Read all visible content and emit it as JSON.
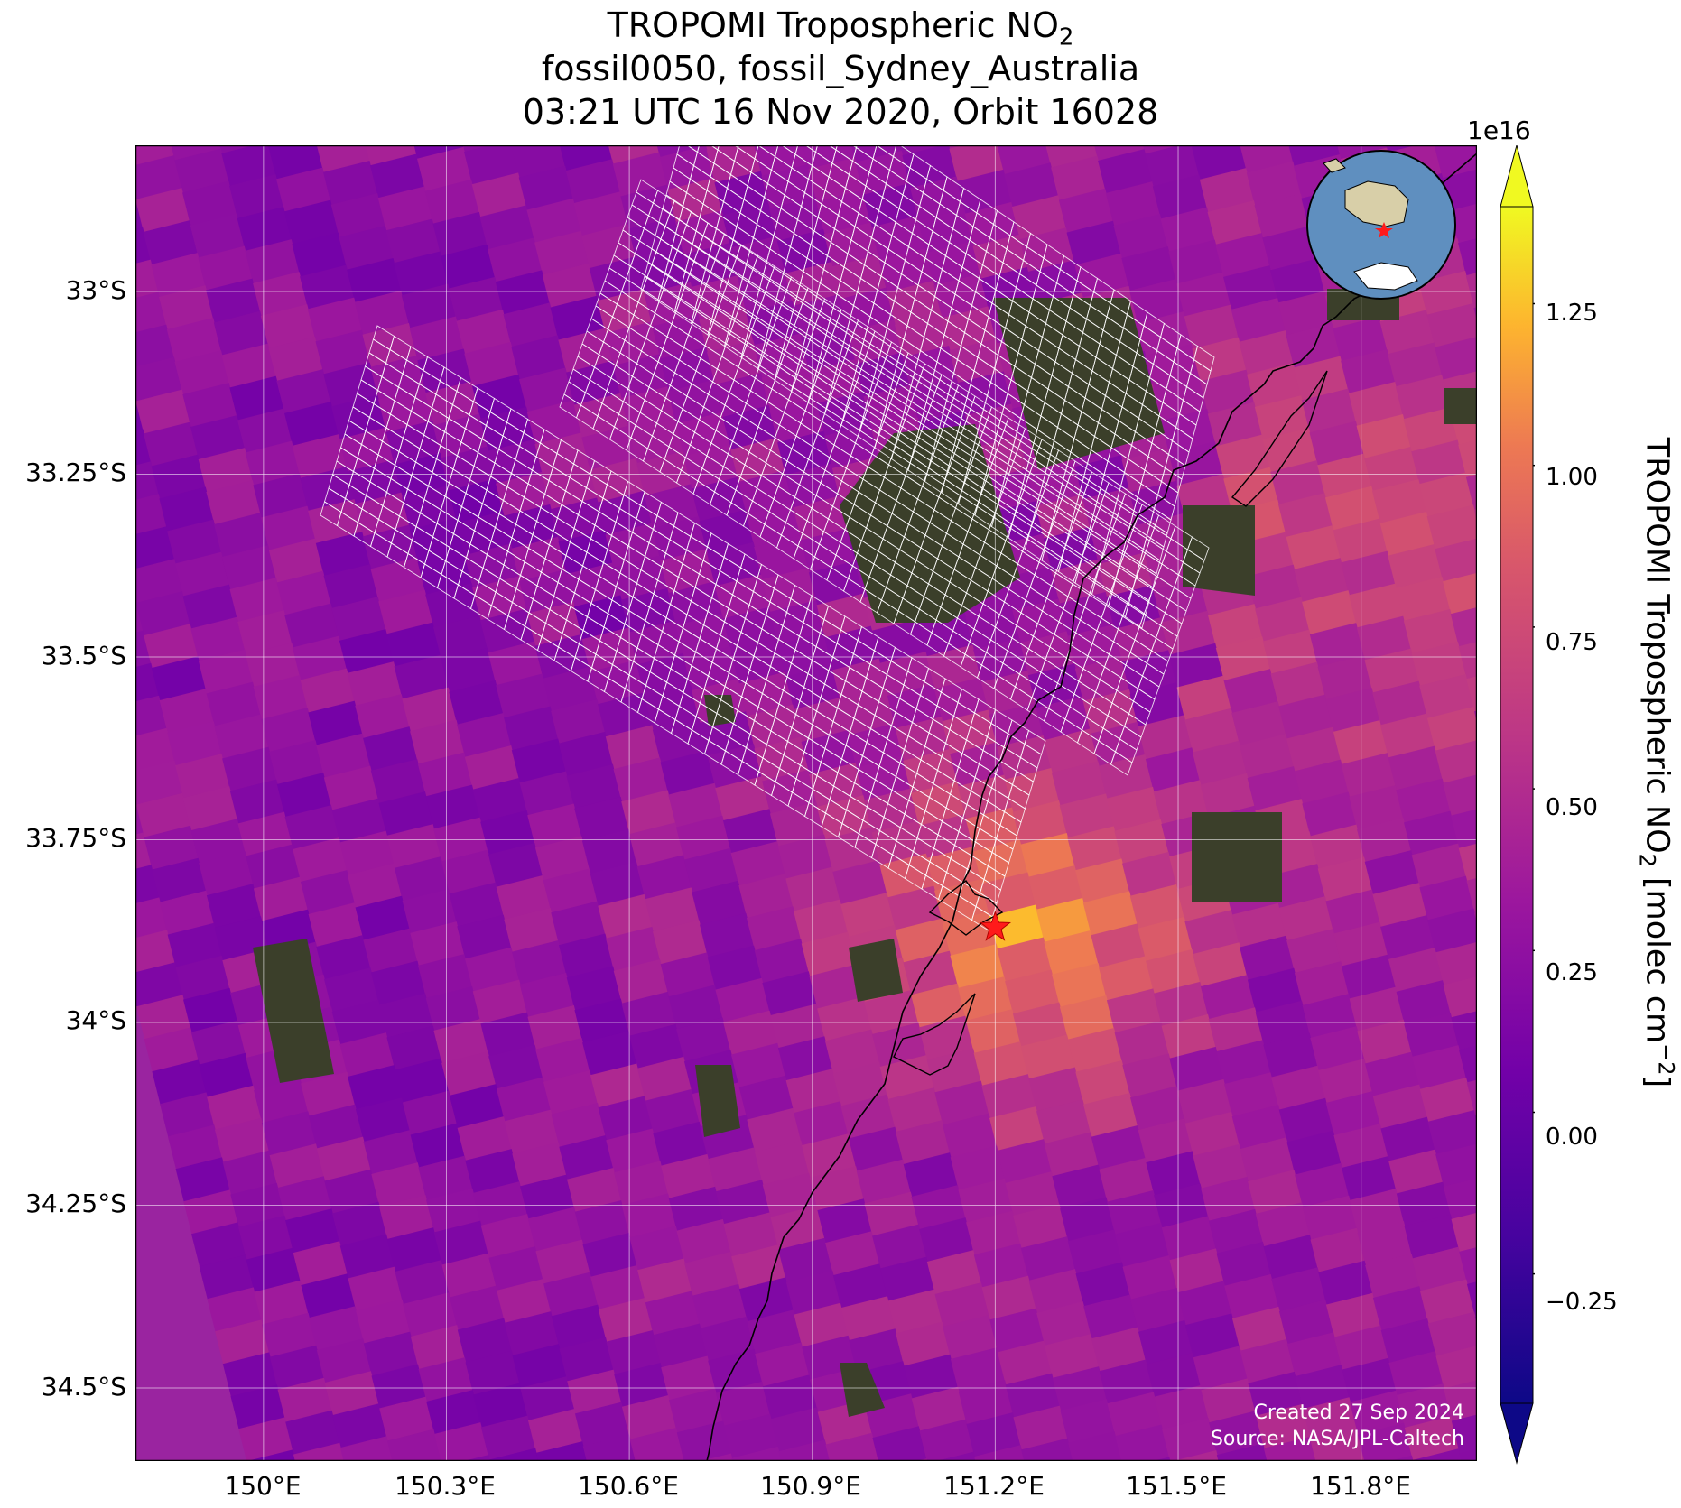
{
  "title": {
    "line1": "TROPOMI Tropospheric NO",
    "line1_sub": "2",
    "line2": "fossil0050, fossil_Sydney_Australia",
    "line3": "03:21 UTC 16 Nov 2020, Orbit 16028"
  },
  "map": {
    "lon_ticks": [
      "150°E",
      "150.3°E",
      "150.6°E",
      "150.9°E",
      "151.2°E",
      "151.5°E",
      "151.8°E"
    ],
    "lat_ticks": [
      "33°S",
      "33.25°S",
      "33.5°S",
      "33.75°S",
      "34°S",
      "34.25°S",
      "34.5°S"
    ],
    "lon_range": [
      149.79,
      151.99
    ],
    "lat_range": [
      -34.6,
      -32.8
    ],
    "target_marker": {
      "lon": 151.2,
      "lat": -33.87,
      "color": "#ff1a1a",
      "icon": "star-marker-icon"
    },
    "inset_globe": {
      "icon": "globe-inset-icon",
      "marker_color": "#ff1a1a"
    },
    "credits": [
      "Created 27 Sep 2024",
      "Source: NASA/JPL-Caltech"
    ]
  },
  "colorbar": {
    "colormap": "plasma",
    "exponent": "1e16",
    "min": -0.45,
    "max": 1.4,
    "ticks": [
      "1.25",
      "1.00",
      "0.75",
      "0.50",
      "0.25",
      "0.00",
      "−0.25"
    ],
    "tick_values": [
      1.25,
      1.0,
      0.75,
      0.5,
      0.25,
      0.0,
      -0.25
    ],
    "label": "TROPOMI Tropospheric NO",
    "label_sub": "2",
    "label_units": " [molec cm",
    "label_sup": "−2",
    "label_end": "]"
  }
}
